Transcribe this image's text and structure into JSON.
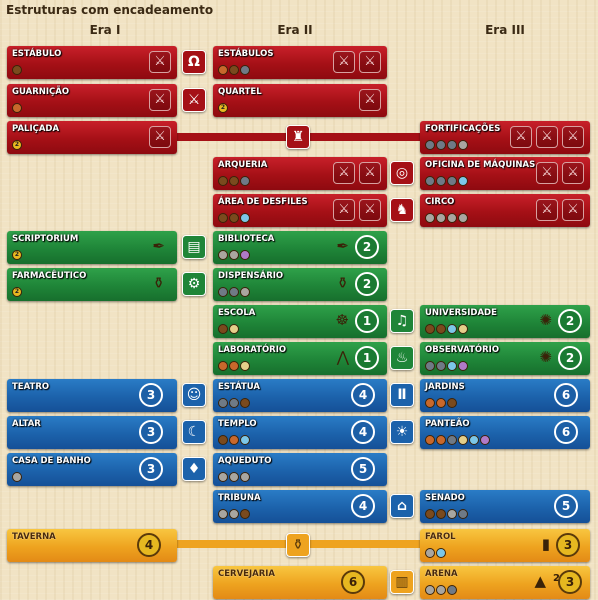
{
  "title": "Estruturas com encadeamento",
  "eras": [
    "Era I",
    "Era II",
    "Era III"
  ],
  "cards": {
    "estabulo": {
      "name": "ESTÁBULO",
      "costs": [
        "wood"
      ]
    },
    "estabulos": {
      "name": "ESTÁBULOS",
      "costs": [
        "clay",
        "wood",
        "ore"
      ]
    },
    "guarnicao": {
      "name": "GUARNIÇÃO",
      "costs": [
        "clay"
      ]
    },
    "quartel": {
      "name": "QUARTEL",
      "costs": [
        "coin"
      ]
    },
    "palicada": {
      "name": "PALIÇADA",
      "costs": [
        "coin"
      ]
    },
    "fortificacoes": {
      "name": "FORTIFICAÇÕES",
      "costs": [
        "ore",
        "ore",
        "ore",
        "stone"
      ]
    },
    "arqueria": {
      "name": "ARQUERIA",
      "costs": [
        "wood",
        "wood",
        "ore"
      ]
    },
    "oficina": {
      "name": "OFICINA DE MÁQUINAS",
      "costs": [
        "ore",
        "ore",
        "ore",
        "glass"
      ]
    },
    "area": {
      "name": "ÁREA DE DESFILES",
      "costs": [
        "wood",
        "wood",
        "glass"
      ]
    },
    "circo": {
      "name": "CIRCO",
      "costs": [
        "stone",
        "stone",
        "stone",
        "stone"
      ]
    },
    "scriptorium": {
      "name": "SCRIPTORIUM",
      "costs": [
        "coin"
      ]
    },
    "biblioteca": {
      "name": "BIBLIOTECA",
      "costs": [
        "stone",
        "stone",
        "cloth"
      ]
    },
    "farmaceutico": {
      "name": "FARMACÊUTICO",
      "costs": [
        "coin"
      ]
    },
    "dispensario": {
      "name": "DISPENSÁRIO",
      "costs": [
        "ore",
        "ore",
        "stone"
      ]
    },
    "escola": {
      "name": "ESCOLA",
      "costs": [
        "wood",
        "pap"
      ]
    },
    "universidade": {
      "name": "UNIVERSIDADE",
      "costs": [
        "wood",
        "wood",
        "glass",
        "pap"
      ]
    },
    "laboratorio": {
      "name": "LABORATÓRIO",
      "costs": [
        "clay",
        "clay",
        "pap"
      ]
    },
    "observatorio": {
      "name": "OBSERVATÓRIO",
      "costs": [
        "ore",
        "ore",
        "glass",
        "cloth"
      ]
    },
    "teatro": {
      "name": "TEATRO",
      "costs": []
    },
    "estatua": {
      "name": "ESTÁTUA",
      "costs": [
        "ore",
        "ore",
        "wood"
      ]
    },
    "jardins": {
      "name": "JARDINS",
      "costs": [
        "clay",
        "clay",
        "wood"
      ]
    },
    "altar": {
      "name": "ALTAR",
      "costs": []
    },
    "templo": {
      "name": "TEMPLO",
      "costs": [
        "wood",
        "clay",
        "glass"
      ]
    },
    "panteao": {
      "name": "PANTEÃO",
      "costs": [
        "clay",
        "clay",
        "ore",
        "pap",
        "glass",
        "cloth"
      ]
    },
    "casa": {
      "name": "CASA DE BANHO",
      "costs": [
        "stone"
      ]
    },
    "aqueduto": {
      "name": "AQUEDUTO",
      "costs": [
        "stone",
        "stone",
        "stone"
      ]
    },
    "tribuna": {
      "name": "TRIBUNA",
      "costs": [
        "stone",
        "stone",
        "wood"
      ]
    },
    "senado": {
      "name": "SENADO",
      "costs": [
        "wood",
        "wood",
        "stone",
        "ore"
      ]
    },
    "taverna": {
      "name": "TAVERNA",
      "costs": []
    },
    "farol": {
      "name": "FAROL",
      "costs": [
        "stone",
        "glass"
      ]
    },
    "cervejaria": {
      "name": "CERVEJARIA",
      "costs": []
    },
    "arena": {
      "name": "ARENA",
      "costs": [
        "stone",
        "stone",
        "ore"
      ]
    }
  },
  "vp": {
    "teatro": "3",
    "estatua": "4",
    "jardins": "6",
    "altar": "3",
    "templo": "4",
    "panteao": "6",
    "casa": "3",
    "aqueduto": "5",
    "tribuna": "4",
    "senado": "5",
    "taverna": "4",
    "farol": "3",
    "cervejaria": "6",
    "arena": "3",
    "biblioteca": "2",
    "dispensario": "2",
    "escola": "1",
    "universidade": "2",
    "laboratorio": "1",
    "observatorio": "2",
    "arena_small": "2"
  },
  "res_letters": {
    "wood": "",
    "stone": "",
    "clay": "",
    "ore": "",
    "glass": "",
    "pap": "",
    "cloth": "",
    "coin": "2"
  },
  "colors": {
    "red": "#a51016",
    "green": "#1f8538",
    "blue": "#1c62ab",
    "yellow": "#eea31f",
    "background": "#f1e3c4"
  }
}
